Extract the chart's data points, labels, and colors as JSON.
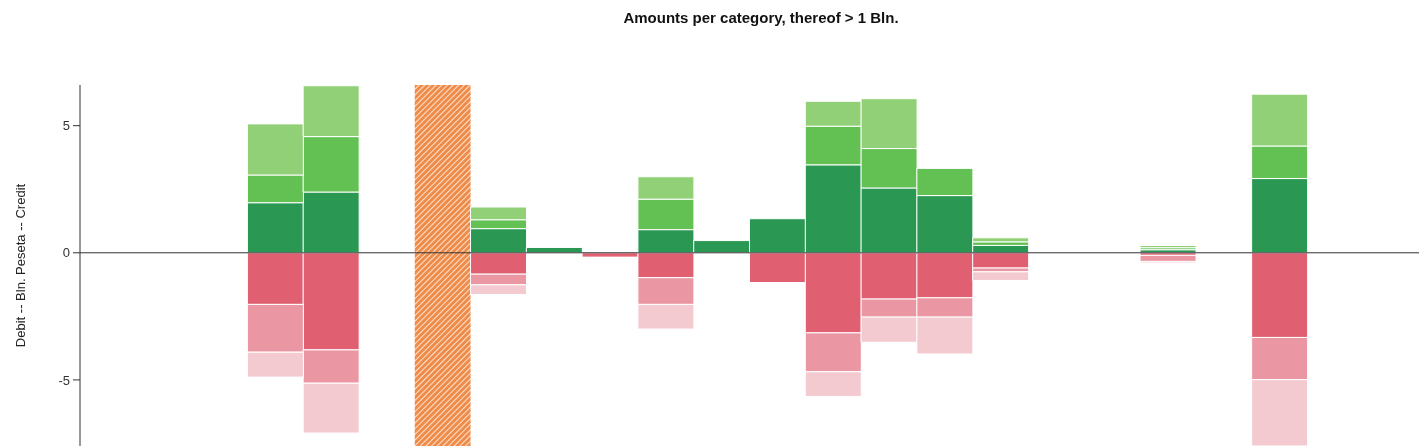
{
  "chart_data": {
    "type": "bar",
    "title": "Amounts per category, thereof > 1 Bln.",
    "ylabel": "Debit -- Bln. Peseta -- Credit",
    "categories": [
      null,
      null,
      null,
      null,
      null,
      null,
      null,
      null,
      null,
      null,
      null,
      null,
      null,
      null,
      null,
      null,
      null,
      null,
      null,
      null,
      null,
      null,
      null,
      null
    ],
    "stacked": true,
    "series": [
      {
        "color": "#2a9853",
        "values": [
          null,
          null,
          null,
          1.97,
          2.39,
          null,
          null,
          0.95,
          0.21,
          null,
          0.91,
          0.48,
          1.34,
          3.46,
          2.55,
          2.25,
          0.29,
          null,
          null,
          0.12,
          null,
          2.92,
          null,
          null
        ]
      },
      {
        "color": "#62c152",
        "values": [
          null,
          null,
          null,
          1.09,
          2.18,
          null,
          null,
          0.35,
          null,
          null,
          1.2,
          null,
          null,
          1.52,
          1.55,
          1.07,
          0.14,
          null,
          null,
          0.08,
          null,
          1.28,
          null,
          null
        ]
      },
      {
        "color": "#91d077",
        "values": [
          null,
          null,
          null,
          2.01,
          2.0,
          null,
          null,
          0.5,
          null,
          null,
          0.88,
          null,
          null,
          0.98,
          1.96,
          null,
          0.16,
          null,
          null,
          0.09,
          null,
          2.04,
          null,
          null
        ]
      },
      {
        "color": "#e06072",
        "values": [
          null,
          null,
          null,
          -2.03,
          -3.82,
          null,
          null,
          -0.84,
          null,
          -0.17,
          -0.98,
          null,
          -1.17,
          -3.15,
          -1.82,
          -1.77,
          -0.6,
          null,
          null,
          -0.1,
          null,
          -3.33,
          null,
          null
        ]
      },
      {
        "color": "#eb97a3",
        "values": [
          null,
          null,
          null,
          -1.88,
          -1.31,
          null,
          null,
          -0.42,
          null,
          null,
          -1.05,
          null,
          null,
          -1.53,
          -0.71,
          -0.76,
          -0.15,
          null,
          null,
          -0.24,
          null,
          -1.66,
          null,
          null
        ]
      },
      {
        "color": "#f4cad1",
        "values": [
          null,
          null,
          null,
          -0.98,
          -1.96,
          null,
          null,
          -0.38,
          null,
          null,
          -0.97,
          null,
          null,
          -0.97,
          -0.99,
          -1.45,
          -0.34,
          null,
          null,
          -0.06,
          null,
          -2.61,
          null,
          null
        ]
      }
    ],
    "ylim": [
      -7.6,
      6.6
    ],
    "yticks": [
      -5,
      0,
      5
    ],
    "tick_labels": "y",
    "ref_lines": [
      {
        "axis": "y",
        "value": 0,
        "color": "#333333"
      }
    ]
  }
}
